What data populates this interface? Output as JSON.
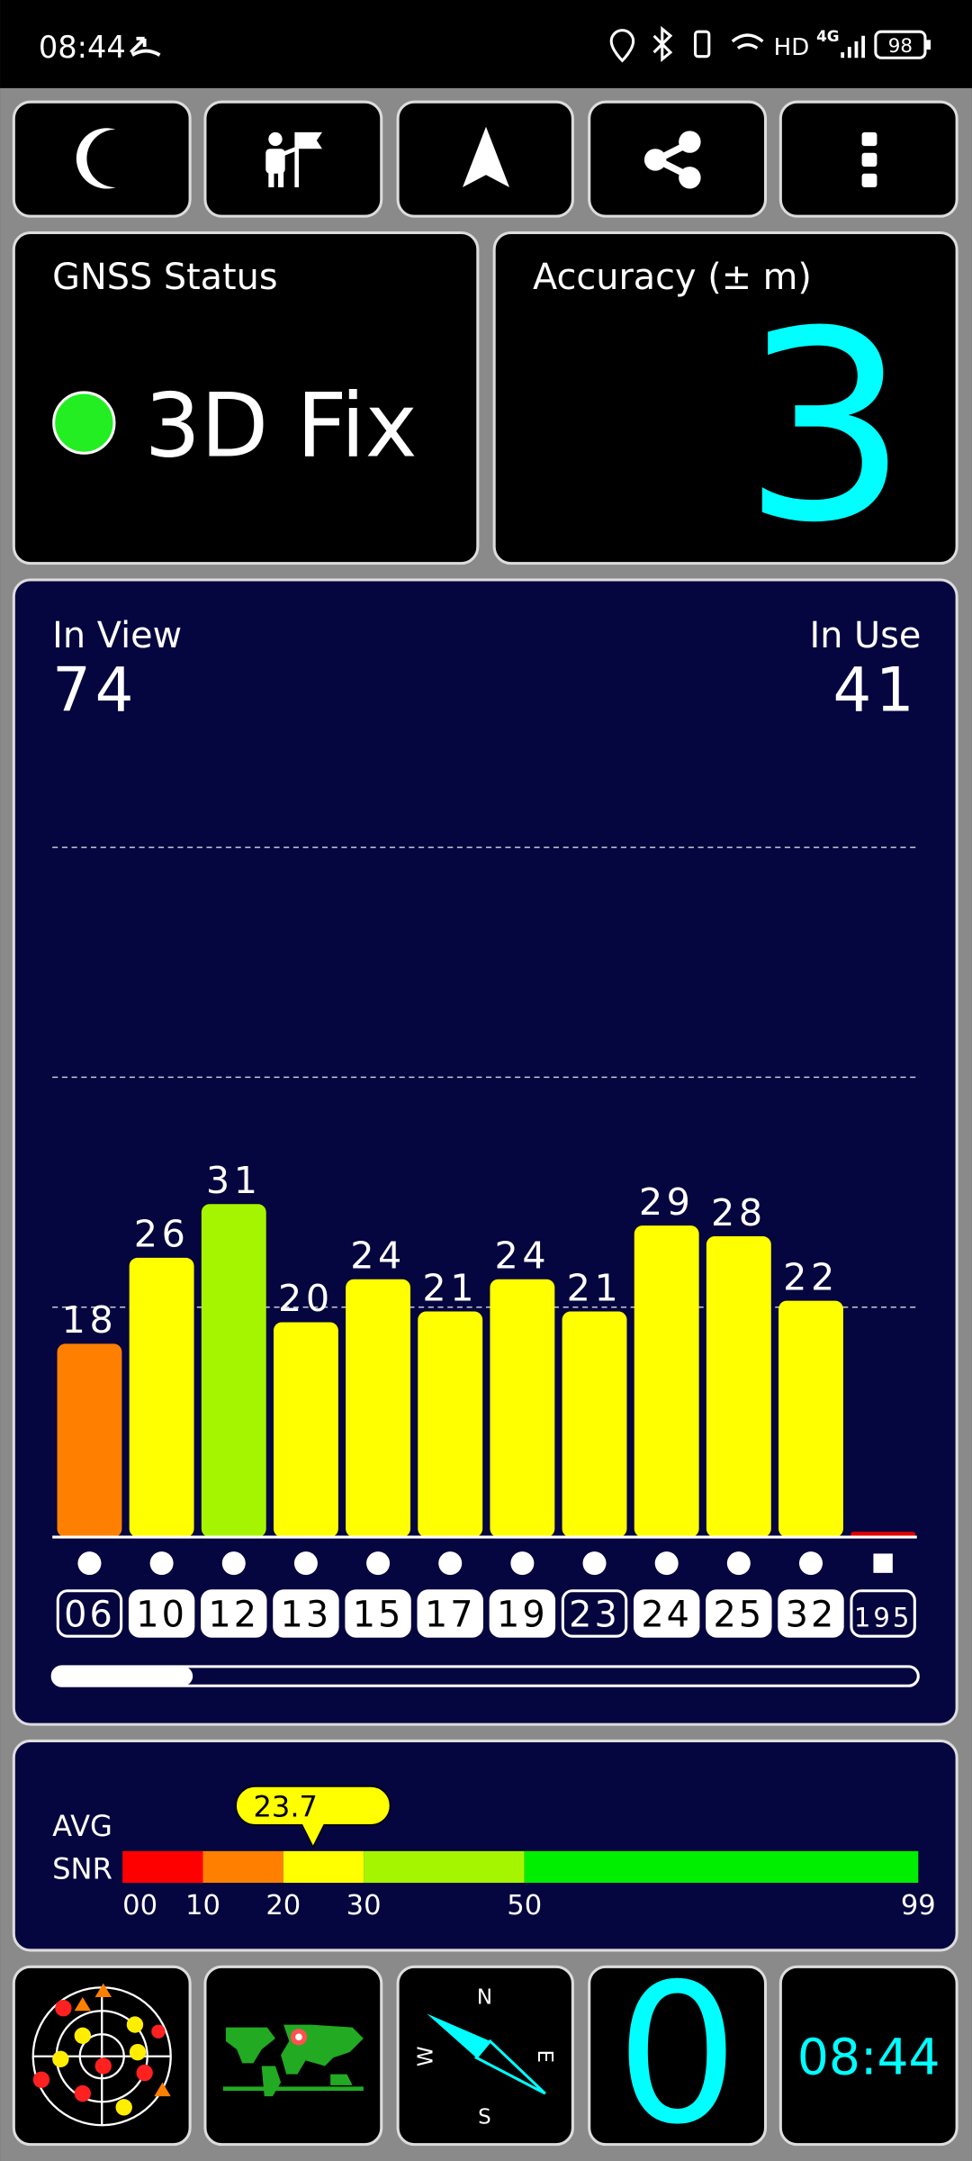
{
  "status_bar": {
    "time": "08:44",
    "network": "HD",
    "signal": "4G",
    "battery": "98"
  },
  "gnss_status": {
    "title": "GNSS Status",
    "fix": "3D Fix"
  },
  "accuracy": {
    "title": "Accuracy (± m)",
    "value": 3
  },
  "satellites": {
    "in_view_label": "In View",
    "in_view": 74,
    "in_use_label": "In Use",
    "in_use": 41
  },
  "chart_data": {
    "type": "bar",
    "categories": [
      "06",
      "10",
      "12",
      "13",
      "15",
      "17",
      "19",
      "23",
      "24",
      "25",
      "32",
      "195"
    ],
    "values": [
      18,
      26,
      31,
      20,
      24,
      21,
      24,
      21,
      29,
      28,
      22,
      0.5
    ],
    "value_labels": [
      "18",
      "26",
      "31",
      "20",
      "24",
      "21",
      "24",
      "21",
      "29",
      "28",
      "22",
      null
    ],
    "colors": [
      "#ff8000",
      "#ffff00",
      "#a6f500",
      "#ffff00",
      "#ffff00",
      "#ffff00",
      "#ffff00",
      "#ffff00",
      "#ffff00",
      "#ffff00",
      "#ffff00",
      "#e00000"
    ],
    "markers": [
      "circle",
      "circle",
      "circle",
      "circle",
      "circle",
      "circle",
      "circle",
      "circle",
      "circle",
      "circle",
      "circle",
      "square"
    ],
    "in_use": [
      false,
      true,
      true,
      true,
      true,
      true,
      true,
      false,
      true,
      true,
      true,
      false
    ],
    "ylim": [
      0,
      70
    ],
    "yticks": [
      21.4,
      42.8,
      64.2
    ],
    "grid": true
  },
  "snr": {
    "label_top": "AVG",
    "label_bottom": "SNR",
    "avg": 23.7,
    "xlim": [
      0,
      99
    ],
    "ticks": [
      {
        "value": 0,
        "label": "00"
      },
      10,
      20,
      30,
      50,
      99
    ],
    "colors": [
      "#ff0000",
      "#ff8000",
      "#ffff00",
      "#a6f500",
      "#00ee00"
    ]
  },
  "bottom": {
    "count": 0,
    "time": "08:44",
    "compass": {
      "n": "N",
      "e": "E",
      "s": "S",
      "w": "W"
    }
  }
}
